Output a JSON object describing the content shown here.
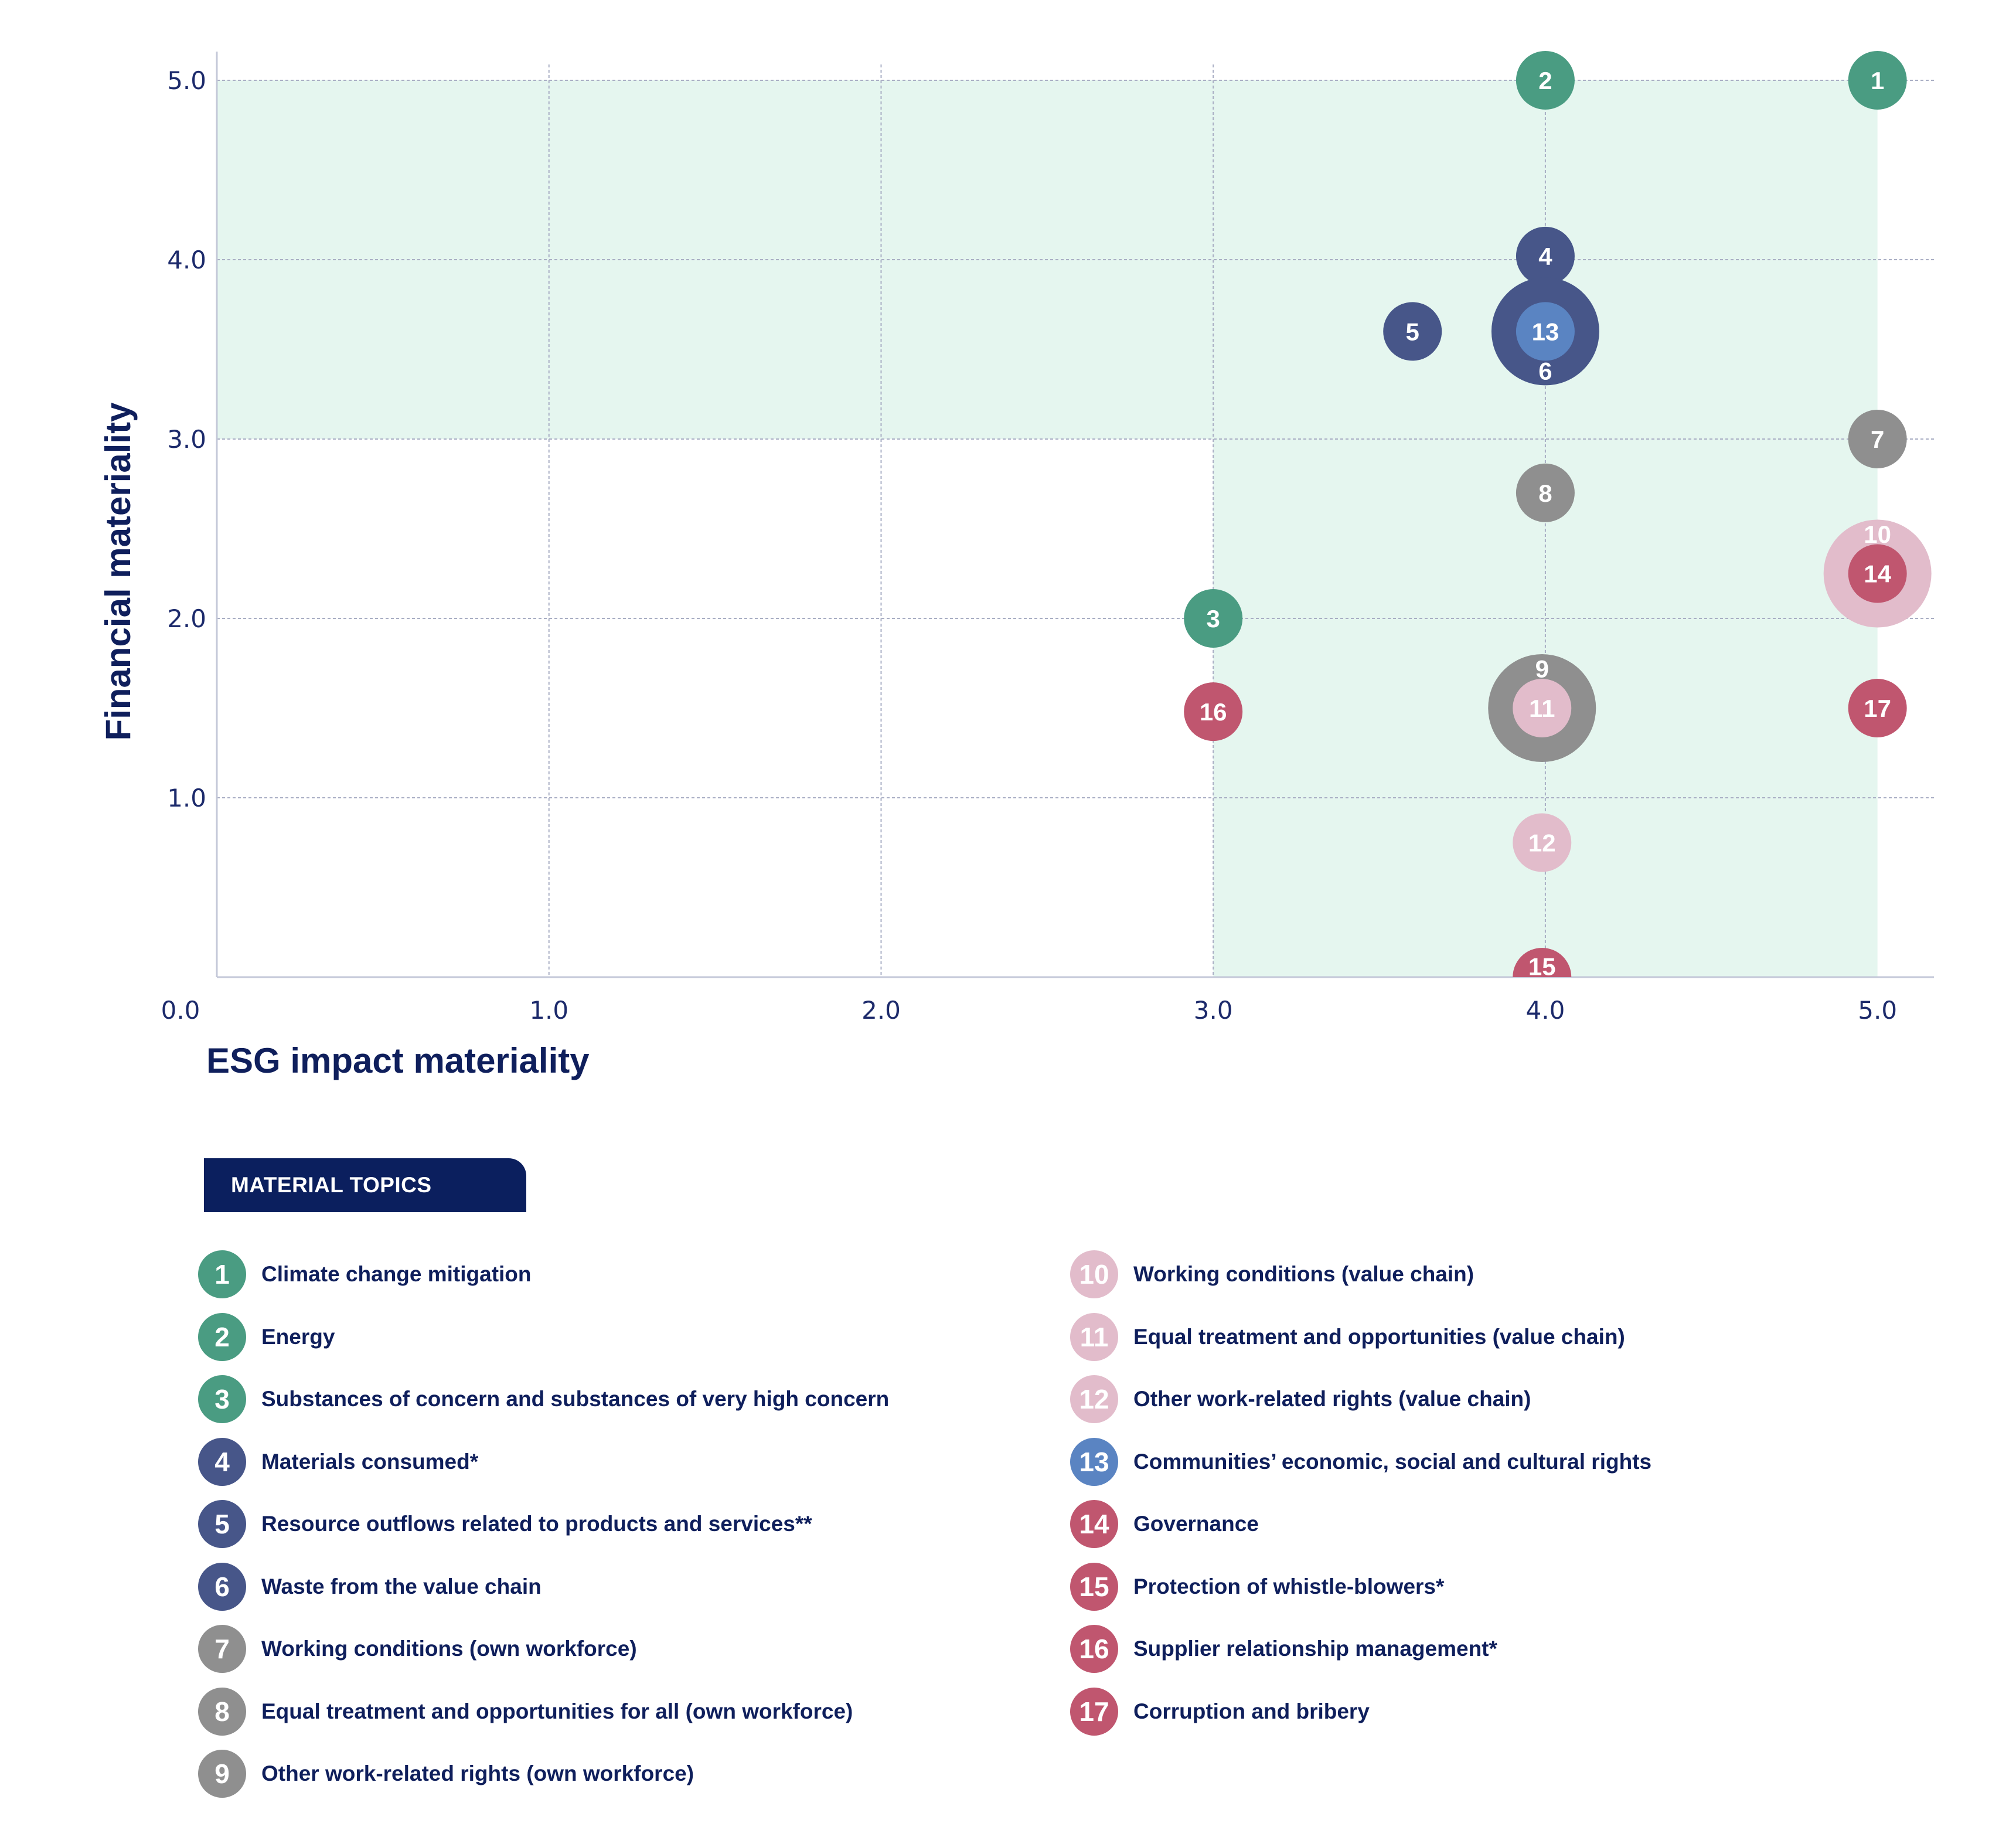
{
  "colors": {
    "green": "#4a9c82",
    "navy": "#475689",
    "grey": "#8f8f8f",
    "lightpink": "#e2bccb",
    "crimson": "#c0566f",
    "blue": "#5a84c2",
    "highlight": "#e5f6ef",
    "axis_text": "#0f1f5c",
    "legend_header_bg": "#0b1f5e"
  },
  "chart_data": {
    "type": "scatter",
    "xlabel": "ESG impact materiality",
    "ylabel": "Financial materiality",
    "xlim": [
      0,
      5.17
    ],
    "ylim": [
      0,
      5.16
    ],
    "x_ticks": [
      "0.0",
      "1.0",
      "2.0",
      "3.0",
      "4.0",
      "5.0"
    ],
    "y_ticks": [
      "1.0",
      "2.0",
      "3.0",
      "4.0",
      "5.0"
    ],
    "grid": true,
    "highlight_regions": [
      {
        "x": [
          0,
          5
        ],
        "y": [
          3,
          5
        ]
      },
      {
        "x": [
          3,
          5
        ],
        "y": [
          0,
          3
        ]
      }
    ],
    "points": [
      {
        "id": "1",
        "x": 5.0,
        "y": 5.0,
        "size": "small",
        "color": "green"
      },
      {
        "id": "2",
        "x": 4.0,
        "y": 5.0,
        "size": "small",
        "color": "green"
      },
      {
        "id": "3",
        "x": 3.0,
        "y": 2.0,
        "size": "small",
        "color": "green"
      },
      {
        "id": "4",
        "x": 4.0,
        "y": 4.02,
        "size": "small",
        "color": "navy"
      },
      {
        "id": "5",
        "x": 3.6,
        "y": 3.6,
        "size": "small",
        "color": "navy"
      },
      {
        "id": "6",
        "x": 4.0,
        "y": 3.6,
        "size": "large",
        "color": "navy",
        "label_dy": -0.22
      },
      {
        "id": "13",
        "x": 4.0,
        "y": 3.6,
        "size": "small",
        "color": "blue"
      },
      {
        "id": "7",
        "x": 5.0,
        "y": 3.0,
        "size": "small",
        "color": "grey"
      },
      {
        "id": "8",
        "x": 4.0,
        "y": 2.7,
        "size": "small",
        "color": "grey"
      },
      {
        "id": "10",
        "x": 5.0,
        "y": 2.25,
        "size": "large",
        "color": "lightpink",
        "label_dy": 0.22
      },
      {
        "id": "14",
        "x": 5.0,
        "y": 2.25,
        "size": "small",
        "color": "crimson"
      },
      {
        "id": "9",
        "x": 3.99,
        "y": 1.5,
        "size": "large",
        "color": "grey",
        "label_dy": 0.22
      },
      {
        "id": "11",
        "x": 3.99,
        "y": 1.5,
        "size": "small",
        "color": "lightpink"
      },
      {
        "id": "16",
        "x": 3.0,
        "y": 1.48,
        "size": "small",
        "color": "crimson"
      },
      {
        "id": "17",
        "x": 5.0,
        "y": 1.5,
        "size": "small",
        "color": "crimson"
      },
      {
        "id": "12",
        "x": 3.99,
        "y": 0.75,
        "size": "small",
        "color": "lightpink"
      },
      {
        "id": "15",
        "x": 3.99,
        "y": 0.0,
        "size": "small",
        "color": "crimson",
        "label_dy": 0.06,
        "clip": true
      }
    ]
  },
  "legend": {
    "title": "MATERIAL TOPICS",
    "items": [
      {
        "num": "1",
        "label": "Climate change mitigation",
        "color": "green"
      },
      {
        "num": "2",
        "label": "Energy",
        "color": "green"
      },
      {
        "num": "3",
        "label": "Substances of concern and substances of very high concern",
        "color": "green"
      },
      {
        "num": "4",
        "label": "Materials consumed*",
        "color": "navy"
      },
      {
        "num": "5",
        "label": "Resource outflows related to products and services**",
        "color": "navy"
      },
      {
        "num": "6",
        "label": "Waste from the value chain",
        "color": "navy"
      },
      {
        "num": "7",
        "label": "Working conditions (own workforce)",
        "color": "grey"
      },
      {
        "num": "8",
        "label": "Equal treatment and opportunities for all (own workforce)",
        "color": "grey"
      },
      {
        "num": "9",
        "label": "Other work-related rights (own workforce)",
        "color": "grey"
      },
      {
        "num": "10",
        "label": "Working conditions (value chain)",
        "color": "lightpink"
      },
      {
        "num": "11",
        "label": "Equal treatment and opportunities (value chain)",
        "color": "lightpink"
      },
      {
        "num": "12",
        "label": "Other work-related rights (value chain)",
        "color": "lightpink"
      },
      {
        "num": "13",
        "label": "Communities’ economic, social and cultural rights",
        "color": "blue"
      },
      {
        "num": "14",
        "label": "Governance",
        "color": "crimson"
      },
      {
        "num": "15",
        "label": "Protection of whistle-blowers*",
        "color": "crimson"
      },
      {
        "num": "16",
        "label": "Supplier relationship management*",
        "color": "crimson"
      },
      {
        "num": "17",
        "label": "Corruption and bribery",
        "color": "crimson"
      }
    ]
  }
}
